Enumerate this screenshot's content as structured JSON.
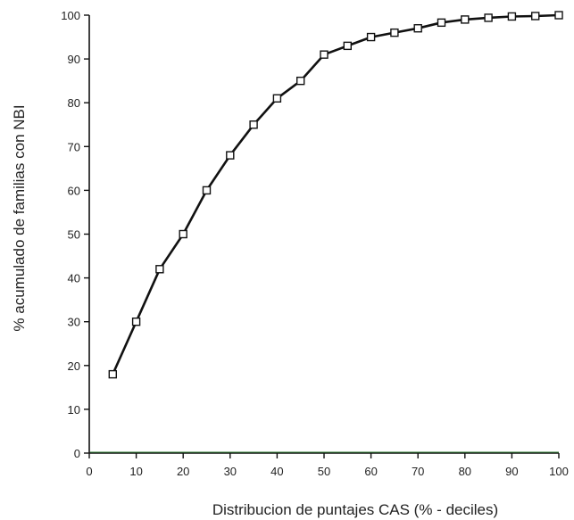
{
  "chart_data": {
    "type": "line",
    "xlabel": "Distribucion de puntajes CAS (% - deciles)",
    "ylabel": "% acumulado de familias con NBI",
    "xlim": [
      0,
      100
    ],
    "ylim": [
      0,
      100
    ],
    "xticks": [
      0,
      10,
      20,
      30,
      40,
      50,
      60,
      70,
      80,
      90,
      100
    ],
    "yticks": [
      0,
      10,
      20,
      30,
      40,
      50,
      60,
      70,
      80,
      90,
      100
    ],
    "grid": false,
    "marker": "open-square",
    "colors": {
      "line": "#111111",
      "axis": "#111111",
      "baseline": "#2e7d32"
    },
    "series": [
      {
        "x": [
          5,
          10,
          15,
          20,
          25,
          30,
          35,
          40,
          45,
          50,
          55,
          60,
          65,
          70,
          75,
          80,
          85,
          90,
          95,
          100
        ],
        "y": [
          18,
          30,
          42,
          50,
          60,
          68,
          75,
          81,
          85,
          91,
          93,
          95,
          96,
          97,
          98.3,
          99,
          99.4,
          99.7,
          99.8,
          100
        ]
      }
    ]
  }
}
